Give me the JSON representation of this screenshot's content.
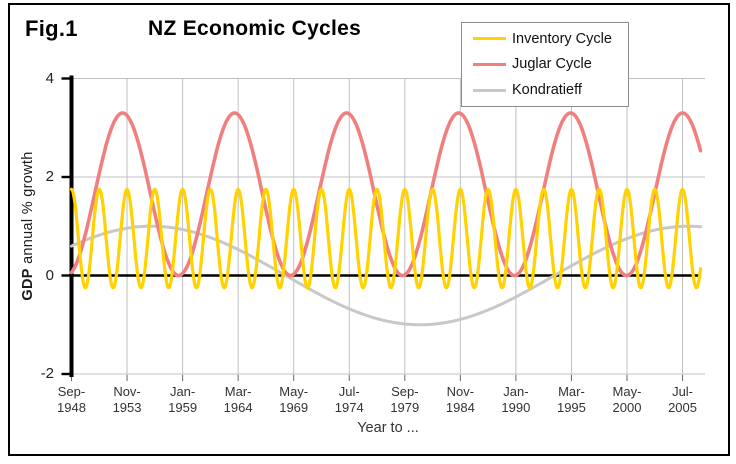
{
  "figure": {
    "label": "Fig.1",
    "title": "NZ Economic Cycles"
  },
  "y_axis": {
    "title_bold": "GDP",
    "title_rest": " annual % growth"
  },
  "x_axis": {
    "title": "Year to ..."
  },
  "chart_data": {
    "type": "line",
    "title": "NZ Economic Cycles",
    "xlabel": "Year to ...",
    "ylabel": "GDP annual % growth",
    "ylim": [
      -2,
      4
    ],
    "y_ticks": [
      4,
      2,
      0,
      -2
    ],
    "x_tick_labels": [
      "Sep-1948",
      "Nov-1953",
      "Jan-1959",
      "Mar-1964",
      "May-1969",
      "Jul-1974",
      "Sep-1979",
      "Nov-1984",
      "Jan-1990",
      "Mar-1995",
      "May-2000",
      "Jul-2005"
    ],
    "x_tick_interval_months": 62,
    "x_domain_months": [
      0,
      702
    ],
    "grid": true,
    "legend_position": "top-right",
    "zero_line": true,
    "colors": {
      "grid": "#C0C0C0",
      "axis": "#000000"
    },
    "series": [
      {
        "name": "Inventory Cycle",
        "color": "#FFD200",
        "waveform": "cosine",
        "period_months": 31,
        "amplitude": 1.0,
        "mean": 0.75,
        "peak_month": 0,
        "max": 1.75,
        "min": -0.25
      },
      {
        "name": "Juglar Cycle",
        "color": "#F08080",
        "waveform": "cosine",
        "period_months": 125,
        "amplitude": 1.65,
        "mean": 1.65,
        "peak_month": 57,
        "max": 3.3,
        "min": 0.0
      },
      {
        "name": "Kondratieff",
        "color": "#C8C8C8",
        "waveform": "cosine",
        "period_months": 600,
        "amplitude": 1.0,
        "mean": 0.0,
        "peak_month": 89,
        "max": 1.0,
        "min": -1.0
      }
    ]
  }
}
